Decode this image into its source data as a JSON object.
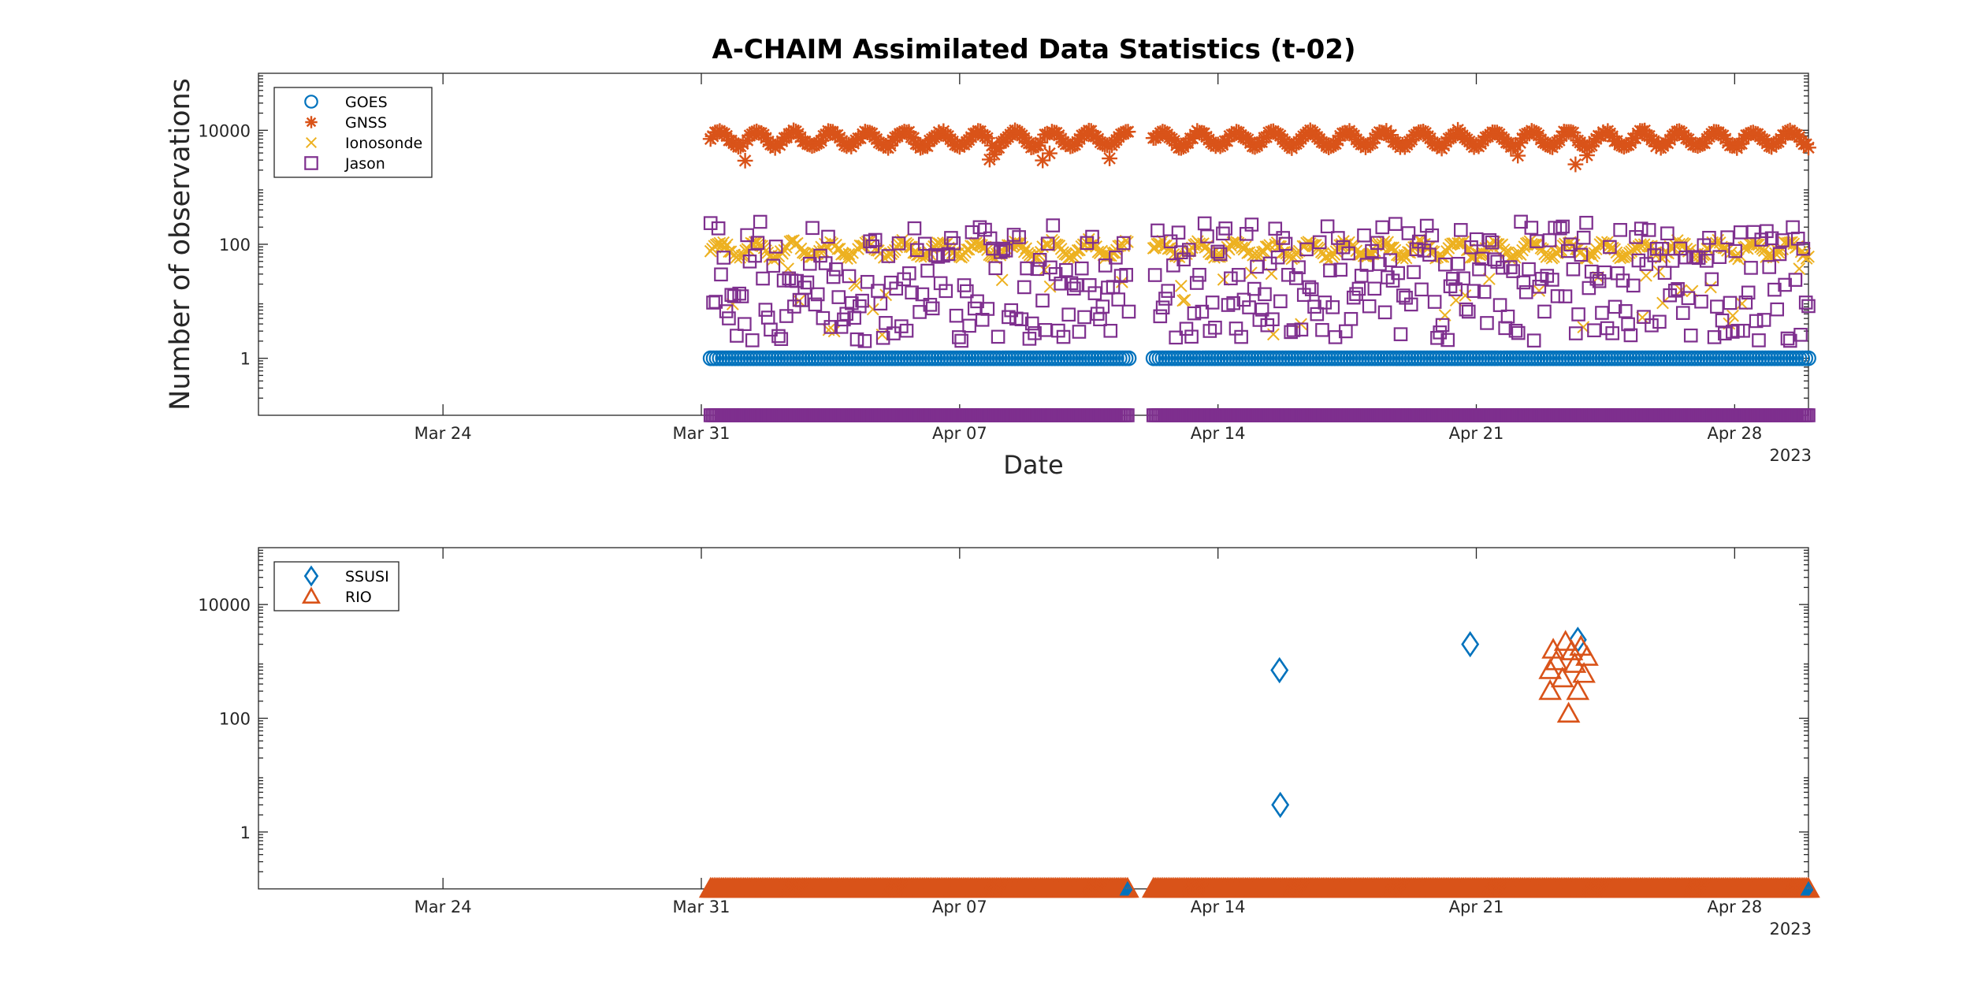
{
  "figure": {
    "title": "A-CHAIM Assimilated Data Statistics (t-02)"
  },
  "chart_data": [
    {
      "type": "scatter",
      "xlabel": "Date",
      "ylabel": "Number of observations",
      "x_axis": "date",
      "xlim": [
        "2023-03-19",
        "2023-04-30"
      ],
      "x_ticks": [
        {
          "date": "2023-03-24",
          "label": "Mar 24"
        },
        {
          "date": "2023-03-31",
          "label": "Mar 31"
        },
        {
          "date": "2023-04-07",
          "label": "Apr 07"
        },
        {
          "date": "2023-04-14",
          "label": "Apr 14"
        },
        {
          "date": "2023-04-21",
          "label": "Apr 21"
        },
        {
          "date": "2023-04-28",
          "label": "Apr 28"
        }
      ],
      "x_year_label": "2023",
      "y_scale": "log",
      "ylim": [
        0.1,
        100000
      ],
      "y_ticks": [
        {
          "value": 1,
          "label": "1"
        },
        {
          "value": 100,
          "label": "100"
        },
        {
          "value": 10000,
          "label": "10000"
        }
      ],
      "legend_position": "top-left",
      "gaps": [
        [
          "2023-04-11T14:00",
          "2023-04-12T06:00"
        ]
      ],
      "series": [
        {
          "name": "GOES",
          "marker": "circle",
          "color": "#0072BD",
          "summary": {
            "start": "2023-03-31",
            "end": "2023-04-30",
            "typical": 1
          }
        },
        {
          "name": "GNSS",
          "marker": "asterisk",
          "color": "#D95319",
          "summary": {
            "start": "2023-03-31",
            "end": "2023-04-30",
            "typical": 7000,
            "range": [
              1800,
              13000
            ]
          }
        },
        {
          "name": "Ionosonde",
          "marker": "x",
          "color": "#EDB120",
          "summary": {
            "start": "2023-03-31",
            "end": "2023-04-30",
            "typical": 80,
            "range": [
              2,
              140
            ]
          }
        },
        {
          "name": "Jason",
          "marker": "square",
          "color": "#7E2F8E",
          "summary": {
            "start": "2023-03-31",
            "end": "2023-04-30",
            "typical": 60,
            "range": [
              2,
              350
            ]
          }
        }
      ]
    },
    {
      "type": "scatter",
      "xlabel": "",
      "ylabel": "",
      "x_axis": "date",
      "xlim": [
        "2023-03-19",
        "2023-04-30"
      ],
      "x_ticks": [
        {
          "date": "2023-03-24",
          "label": "Mar 24"
        },
        {
          "date": "2023-03-31",
          "label": "Mar 31"
        },
        {
          "date": "2023-04-07",
          "label": "Apr 07"
        },
        {
          "date": "2023-04-14",
          "label": "Apr 14"
        },
        {
          "date": "2023-04-21",
          "label": "Apr 21"
        },
        {
          "date": "2023-04-28",
          "label": "Apr 28"
        }
      ],
      "x_year_label": "2023",
      "y_scale": "log",
      "ylim": [
        0.1,
        100000
      ],
      "y_ticks": [
        {
          "value": 1,
          "label": "1"
        },
        {
          "value": 100,
          "label": "100"
        },
        {
          "value": 10000,
          "label": "10000"
        }
      ],
      "legend_position": "top-left",
      "series": [
        {
          "name": "SSUSI",
          "marker": "diamond",
          "color": "#0072BD",
          "points": [
            {
              "x": "2023-04-15T16:00",
              "y": 700
            },
            {
              "x": "2023-04-15T16:30",
              "y": 3
            },
            {
              "x": "2023-04-20T20:00",
              "y": 2000
            },
            {
              "x": "2023-04-23T18:00",
              "y": 2400
            }
          ]
        },
        {
          "name": "RIO",
          "marker": "triangle",
          "color": "#D95319",
          "points": [
            {
              "x": "2023-04-23T00:00",
              "y": 700
            },
            {
              "x": "2023-04-23T00:00",
              "y": 300
            },
            {
              "x": "2023-04-23T02:00",
              "y": 1600
            },
            {
              "x": "2023-04-23T04:00",
              "y": 1000
            },
            {
              "x": "2023-04-23T08:00",
              "y": 500
            },
            {
              "x": "2023-04-23T10:00",
              "y": 2200
            },
            {
              "x": "2023-04-23T12:00",
              "y": 120
            },
            {
              "x": "2023-04-23T14:00",
              "y": 1500
            },
            {
              "x": "2023-04-23T16:00",
              "y": 900
            },
            {
              "x": "2023-04-23T18:00",
              "y": 300
            },
            {
              "x": "2023-04-23T20:00",
              "y": 1800
            },
            {
              "x": "2023-04-23T22:00",
              "y": 600
            },
            {
              "x": "2023-04-24T00:00",
              "y": 1200
            }
          ]
        }
      ]
    }
  ]
}
